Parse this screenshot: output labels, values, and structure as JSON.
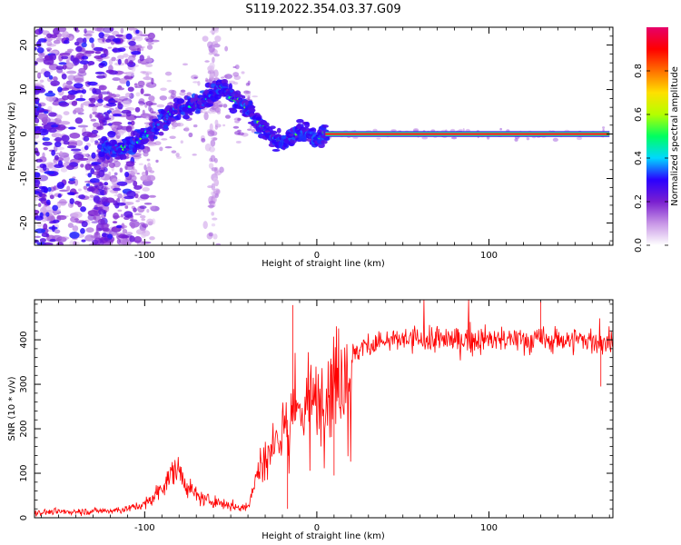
{
  "figure_title": "S119.2022.354.03.37.G09",
  "chart_data": [
    {
      "type": "heatmap",
      "xlabel": "Height of straight line (km)",
      "ylabel": "Frequency (Hz)",
      "xlim": [
        -164,
        172
      ],
      "ylim": [
        -25,
        24
      ],
      "x_ticks": [
        -100,
        0,
        100
      ],
      "y_ticks": [
        -20,
        -10,
        0,
        10,
        20
      ],
      "grid": false,
      "ridge": {
        "x": [
          -122,
          -115,
          -108,
          -102,
          -96,
          -90,
          -84,
          -78,
          -72,
          -66,
          -60,
          -55,
          -50,
          -45,
          -40,
          -35,
          -30,
          -25,
          -20,
          -15,
          -10,
          -5,
          0,
          5,
          10,
          20,
          40,
          60,
          80,
          100,
          120,
          140,
          160,
          170
        ],
        "y": [
          -3,
          -3.5,
          -2.5,
          -1,
          1,
          3,
          5,
          6,
          6.5,
          7.5,
          9,
          11,
          8,
          7.5,
          6,
          3,
          1,
          -1,
          -2,
          -1,
          1,
          0,
          -1,
          0.2,
          0,
          0,
          0,
          0,
          0,
          0,
          0,
          0,
          0,
          0
        ]
      },
      "colorbar": {
        "label": "Normalized spectral amplitude",
        "range": [
          0,
          1
        ],
        "ticks": [
          "0.0",
          "0.2",
          "0.4",
          "0.6",
          "0.8"
        ],
        "colors": [
          "#ffffff",
          "#c896e6",
          "#7a1fd0",
          "#2a00ff",
          "#00d8ff",
          "#00ff60",
          "#b4ff00",
          "#ffe000",
          "#ff7000",
          "#ff0000",
          "#e6006a"
        ]
      }
    },
    {
      "type": "line",
      "xlabel": "Height of straight line (km)",
      "ylabel": "SNR (10 * v/v)",
      "xlim": [
        -164,
        172
      ],
      "ylim": [
        0,
        490
      ],
      "x_ticks": [
        -100,
        0,
        100
      ],
      "y_ticks": [
        0,
        100,
        200,
        300,
        400
      ],
      "grid": false,
      "series": [
        {
          "color": "#ff0000",
          "x": [
            -164,
            -140,
            -120,
            -110,
            -100,
            -95,
            -90,
            -85,
            -82,
            -80,
            -78,
            -75,
            -70,
            -65,
            -60,
            -55,
            -50,
            -45,
            -40,
            -38,
            -35,
            -32,
            -30,
            -27,
            -25,
            -22,
            -20,
            -18,
            -15,
            -12,
            -10,
            -8,
            -5,
            -2,
            0,
            2,
            5,
            8,
            10,
            12,
            15,
            18,
            20,
            25,
            30,
            40,
            50,
            60,
            80,
            100,
            120,
            140,
            160,
            165,
            170,
            172
          ],
          "y": [
            12,
            14,
            16,
            20,
            30,
            45,
            70,
            95,
            110,
            105,
            90,
            70,
            50,
            40,
            38,
            32,
            28,
            22,
            25,
            60,
            90,
            110,
            130,
            150,
            170,
            180,
            210,
            230,
            200,
            230,
            250,
            260,
            240,
            260,
            250,
            270,
            290,
            300,
            310,
            320,
            340,
            350,
            360,
            380,
            390,
            395,
            400,
            400,
            400,
            400,
            400,
            400,
            400,
            390,
            395,
            400
          ]
        }
      ]
    }
  ]
}
